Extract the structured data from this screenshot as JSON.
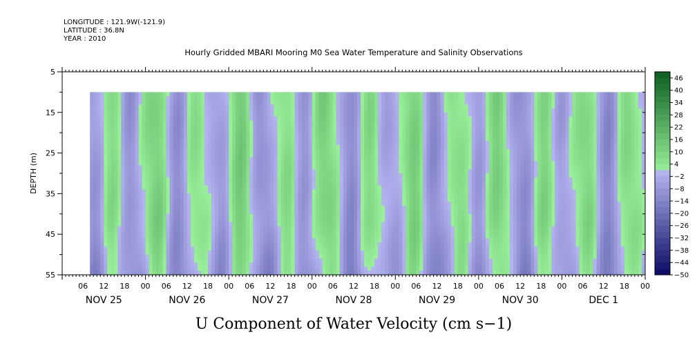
{
  "header": {
    "longitude": "LONGITUDE : 121.9W(-121.9)",
    "latitude": "LATITUDE : 36.8N",
    "year": "YEAR : 2010"
  },
  "chart_data": {
    "type": "heatmap",
    "title": "Hourly Gridded MBARI Mooring M0 Sea Water Temperature and Salinity Observations",
    "xlabel": "U Component of Water Velocity (cm s−1)",
    "ylabel": "DEPTH (m)",
    "y_range": [
      5,
      55
    ],
    "y_inverted": true,
    "y_ticks": [
      "5",
      "15",
      "25",
      "35",
      "45",
      "55"
    ],
    "data_depth_range": [
      10,
      55
    ],
    "x_range_hours": [
      0,
      168
    ],
    "data_start_hour": 8,
    "x_tick_labels": [
      "06",
      "12",
      "18",
      "00",
      "06",
      "12",
      "18",
      "00",
      "06",
      "12",
      "18",
      "00",
      "06",
      "12",
      "18",
      "00",
      "06",
      "12",
      "18",
      "00",
      "06",
      "12",
      "18",
      "00",
      "06",
      "12",
      "18",
      "00"
    ],
    "day_labels": [
      "NOV 25",
      "NOV 26",
      "NOV 27",
      "NOV 28",
      "NOV 29",
      "NOV 30",
      "DEC  1"
    ],
    "colorbar": {
      "ticks": [
        "46",
        "40",
        "34",
        "28",
        "22",
        "16",
        "10",
        "4",
        "−2",
        "−8",
        "−14",
        "−20",
        "−26",
        "−32",
        "−38",
        "−44",
        "−50"
      ],
      "min": -50,
      "max": 50,
      "step": 3
    },
    "colors": {
      "positive_low": "#9af09a",
      "positive_high": "#0a5a1e",
      "negative_low": "#b4b4f0",
      "negative_high": "#0a0a64"
    }
  }
}
